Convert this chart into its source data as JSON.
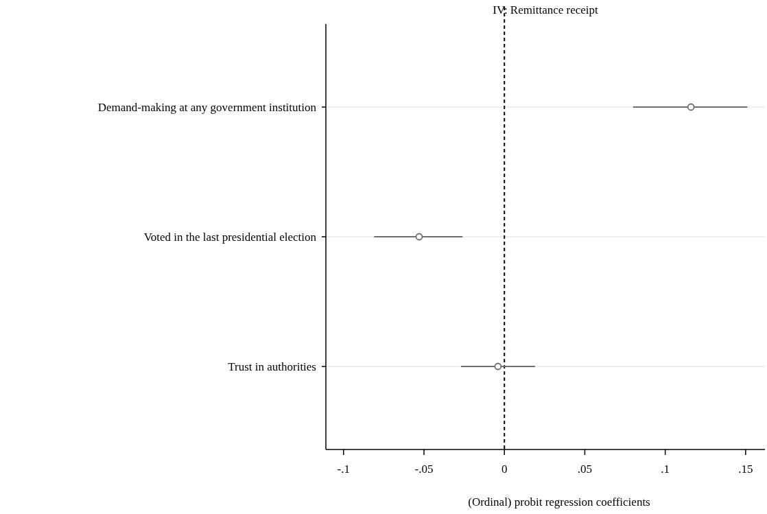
{
  "chart_data": {
    "type": "scatter",
    "orientation": "horizontal",
    "title": "IV: Remittance receipt",
    "xlabel": "(Ordinal) probit regression coefficients",
    "categories": [
      "Demand-making at any government institution",
      "Voted in the last presidential election",
      "Trust in authorities"
    ],
    "values": [
      0.116,
      -0.053,
      -0.004
    ],
    "errors": [
      [
        0.08,
        0.151
      ],
      [
        -0.081,
        -0.026
      ],
      [
        -0.027,
        0.019
      ]
    ],
    "color": "#6e6e6e",
    "marker": "circle",
    "xlim": [
      -0.111,
      0.162
    ],
    "xticks": [
      {
        "value": -0.1,
        "label": "-.1"
      },
      {
        "value": -0.05,
        "label": "-.05"
      },
      0,
      {
        "value": 0.05,
        "label": ".05"
      },
      {
        "value": 0.1,
        "label": ".1"
      },
      {
        "value": 0.15,
        "label": ".15"
      }
    ],
    "ref_lines": [
      {
        "axis": "x",
        "value": 0,
        "line_style": "dashed",
        "color": "#000000"
      }
    ],
    "grid": "y"
  }
}
